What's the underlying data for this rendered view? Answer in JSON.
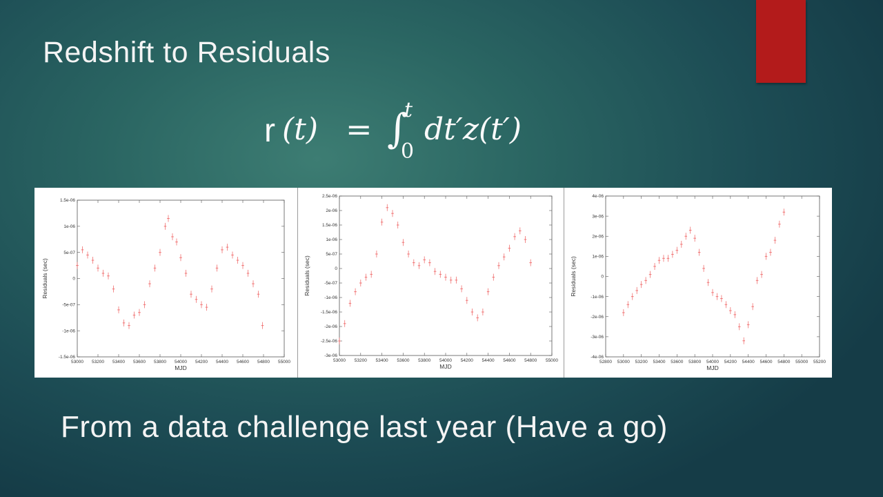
{
  "slide": {
    "title": "Redshift to Residuals",
    "formula": {
      "lhs_r": "r",
      "lhs_arg": "(t)",
      "equals": "=",
      "integral": "∫",
      "upper_limit": "t",
      "lower_limit": "0",
      "integrand": "dt′z(t′)"
    },
    "caption": "From a data challenge last year (Have a go)",
    "accent_color": "#b31b1b"
  },
  "chart_data": [
    {
      "type": "scatter",
      "xlabel": "MJD",
      "ylabel": "Residuals (sec)",
      "xlim": [
        53000,
        55000
      ],
      "ylim": [
        -1.5e-06,
        1.5e-06
      ],
      "x_ticks": [
        "53000",
        "53200",
        "53400",
        "53600",
        "53800",
        "54000",
        "54200",
        "54400",
        "54600",
        "54800",
        "55000"
      ],
      "y_ticks": [
        "-1.5e-06",
        "-1e-06",
        "-5e-07",
        "0",
        "5e-07",
        "1e-06",
        "1.5e-06"
      ],
      "series": [
        {
          "x": [
            53000,
            53050,
            53100,
            53150,
            53200,
            53250,
            53300,
            53350,
            53400,
            53450,
            53500,
            53550,
            53600,
            53650,
            53700,
            53750,
            53800,
            53850,
            53880,
            53920,
            53960,
            54000,
            54050,
            54100,
            54150,
            54200,
            54250,
            54300,
            54350,
            54400,
            54450,
            54500,
            54550,
            54600,
            54650,
            54700,
            54750,
            54790
          ],
          "y": [
            2.5e-07,
            5.5e-07,
            4.5e-07,
            3.5e-07,
            2e-07,
            1e-07,
            5e-08,
            -2e-07,
            -6e-07,
            -8.5e-07,
            -9e-07,
            -7e-07,
            -6.5e-07,
            -5e-07,
            -1e-07,
            2e-07,
            5e-07,
            1e-06,
            1.15e-06,
            8e-07,
            7e-07,
            4e-07,
            1e-07,
            -3e-07,
            -4e-07,
            -5e-07,
            -5.5e-07,
            -2e-07,
            2e-07,
            5.5e-07,
            6e-07,
            4.5e-07,
            3.5e-07,
            2.5e-07,
            1e-07,
            -1e-07,
            -3e-07,
            -9e-07
          ]
        }
      ],
      "color": "#f07070"
    },
    {
      "type": "scatter",
      "xlabel": "MJD",
      "ylabel": "Residuals (sec)",
      "xlim": [
        53000,
        55000
      ],
      "ylim": [
        -3e-06,
        2.5e-06
      ],
      "x_ticks": [
        "53000",
        "53200",
        "53400",
        "53600",
        "53800",
        "54000",
        "54200",
        "54400",
        "54600",
        "54800",
        "55000"
      ],
      "y_ticks": [
        "-3e-06",
        "-2.5e-06",
        "-2e-06",
        "-1.5e-06",
        "-1e-06",
        "-5e-07",
        "0",
        "5e-07",
        "1e-06",
        "1.5e-06",
        "2e-06",
        "2.5e-06"
      ],
      "series": [
        {
          "x": [
            53000,
            53050,
            53100,
            53150,
            53200,
            53250,
            53300,
            53350,
            53400,
            53450,
            53500,
            53550,
            53600,
            53650,
            53700,
            53750,
            53800,
            53850,
            53900,
            53950,
            54000,
            54050,
            54100,
            54150,
            54200,
            54250,
            54300,
            54350,
            54400,
            54450,
            54500,
            54550,
            54600,
            54650,
            54700,
            54750,
            54800
          ],
          "y": [
            -2.5e-06,
            -1.9e-06,
            -1.2e-06,
            -8e-07,
            -5e-07,
            -3e-07,
            -2e-07,
            5e-07,
            1.6e-06,
            2.1e-06,
            1.9e-06,
            1.5e-06,
            9e-07,
            5e-07,
            2e-07,
            1e-07,
            3e-07,
            2e-07,
            -1e-07,
            -2e-07,
            -3e-07,
            -4e-07,
            -4e-07,
            -7e-07,
            -1.1e-06,
            -1.5e-06,
            -1.7e-06,
            -1.5e-06,
            -8e-07,
            -3e-07,
            1e-07,
            4e-07,
            7e-07,
            1.1e-06,
            1.3e-06,
            1e-06,
            2e-07
          ]
        }
      ],
      "color": "#f07070"
    },
    {
      "type": "scatter",
      "xlabel": "MJD",
      "ylabel": "Residuals (sec)",
      "xlim": [
        52800,
        55200
      ],
      "ylim": [
        -4e-06,
        4e-06
      ],
      "x_ticks": [
        "52800",
        "53000",
        "53200",
        "53400",
        "53600",
        "53800",
        "54000",
        "54200",
        "54400",
        "54600",
        "54800",
        "55000",
        "55200"
      ],
      "y_ticks": [
        "-4e-06",
        "-3e-06",
        "-2e-06",
        "-1e-06",
        "0",
        "1e-06",
        "2e-06",
        "3e-06",
        "4e-06"
      ],
      "series": [
        {
          "x": [
            53000,
            53050,
            53100,
            53150,
            53200,
            53250,
            53300,
            53350,
            53400,
            53450,
            53500,
            53550,
            53600,
            53650,
            53700,
            53750,
            53800,
            53850,
            53900,
            53950,
            54000,
            54050,
            54100,
            54150,
            54200,
            54250,
            54300,
            54350,
            54400,
            54450,
            54500,
            54550,
            54600,
            54650,
            54700,
            54750,
            54800
          ],
          "y": [
            -1.8e-06,
            -1.4e-06,
            -1e-06,
            -7e-07,
            -4e-07,
            -2e-07,
            1e-07,
            5e-07,
            8e-07,
            9e-07,
            9e-07,
            1.1e-06,
            1.3e-06,
            1.6e-06,
            2e-06,
            2.3e-06,
            1.9e-06,
            1.2e-06,
            4e-07,
            -3e-07,
            -8e-07,
            -1e-06,
            -1.1e-06,
            -1.4e-06,
            -1.7e-06,
            -1.9e-06,
            -2.5e-06,
            -3.2e-06,
            -2.4e-06,
            -1.5e-06,
            -2e-07,
            1e-07,
            1e-06,
            1.2e-06,
            1.8e-06,
            2.6e-06,
            3.2e-06
          ]
        }
      ],
      "color": "#f07070"
    }
  ]
}
